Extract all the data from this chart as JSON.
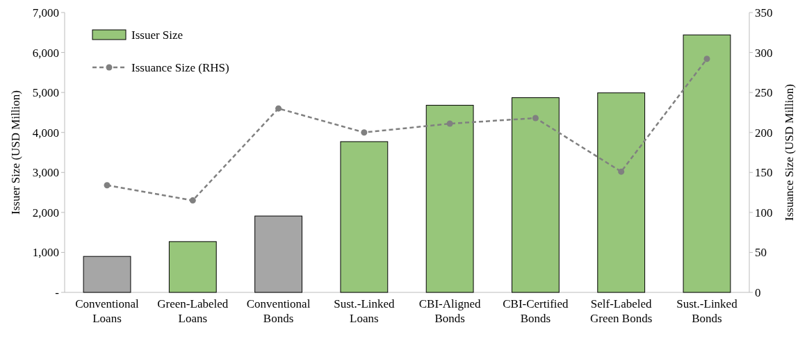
{
  "chart_data": {
    "type": "bar",
    "categories": [
      "Conventional\nLoans",
      "Green-Labeled\nLoans",
      "Conventional\nBonds",
      "Sust.-Linked\nLoans",
      "CBI-Aligned\nBonds",
      "CBI-Certified\nBonds",
      "Self-Labeled\nGreen Bonds",
      "Sust.-Linked\nBonds"
    ],
    "series": [
      {
        "name": "Issuer Size",
        "color": "#97c67a",
        "colors": [
          "#a6a6a6",
          "#97c67a",
          "#a6a6a6",
          "#97c67a",
          "#97c67a",
          "#97c67a",
          "#97c67a",
          "#97c67a"
        ],
        "values": [
          900,
          1270,
          1910,
          3770,
          4680,
          4870,
          4990,
          6440
        ]
      },
      {
        "name": "Issuance Size (RHS)",
        "type": "line",
        "axis": "y2",
        "color": "#808080",
        "values": [
          134,
          115,
          230,
          200,
          211,
          218,
          151,
          292
        ]
      }
    ],
    "ylabel": "Issuer Size (USD Million)",
    "y2label": "Issuance Size (USD Million)",
    "ylim": [
      0,
      7000
    ],
    "yticks": [
      {
        "value": 0,
        "label": "-"
      },
      {
        "value": 1000,
        "label": "1,000"
      },
      {
        "value": 2000,
        "label": "2,000"
      },
      {
        "value": 3000,
        "label": "3,000"
      },
      {
        "value": 4000,
        "label": "4,000"
      },
      {
        "value": 5000,
        "label": "5,000"
      },
      {
        "value": 6000,
        "label": "6,000"
      },
      {
        "value": 7000,
        "label": "7,000"
      }
    ],
    "y2lim": [
      0,
      350
    ],
    "y2ticks": [
      0,
      50,
      100,
      150,
      200,
      250,
      300,
      350
    ],
    "legend": "top left",
    "marker": "circle",
    "line_style": "dashed"
  }
}
